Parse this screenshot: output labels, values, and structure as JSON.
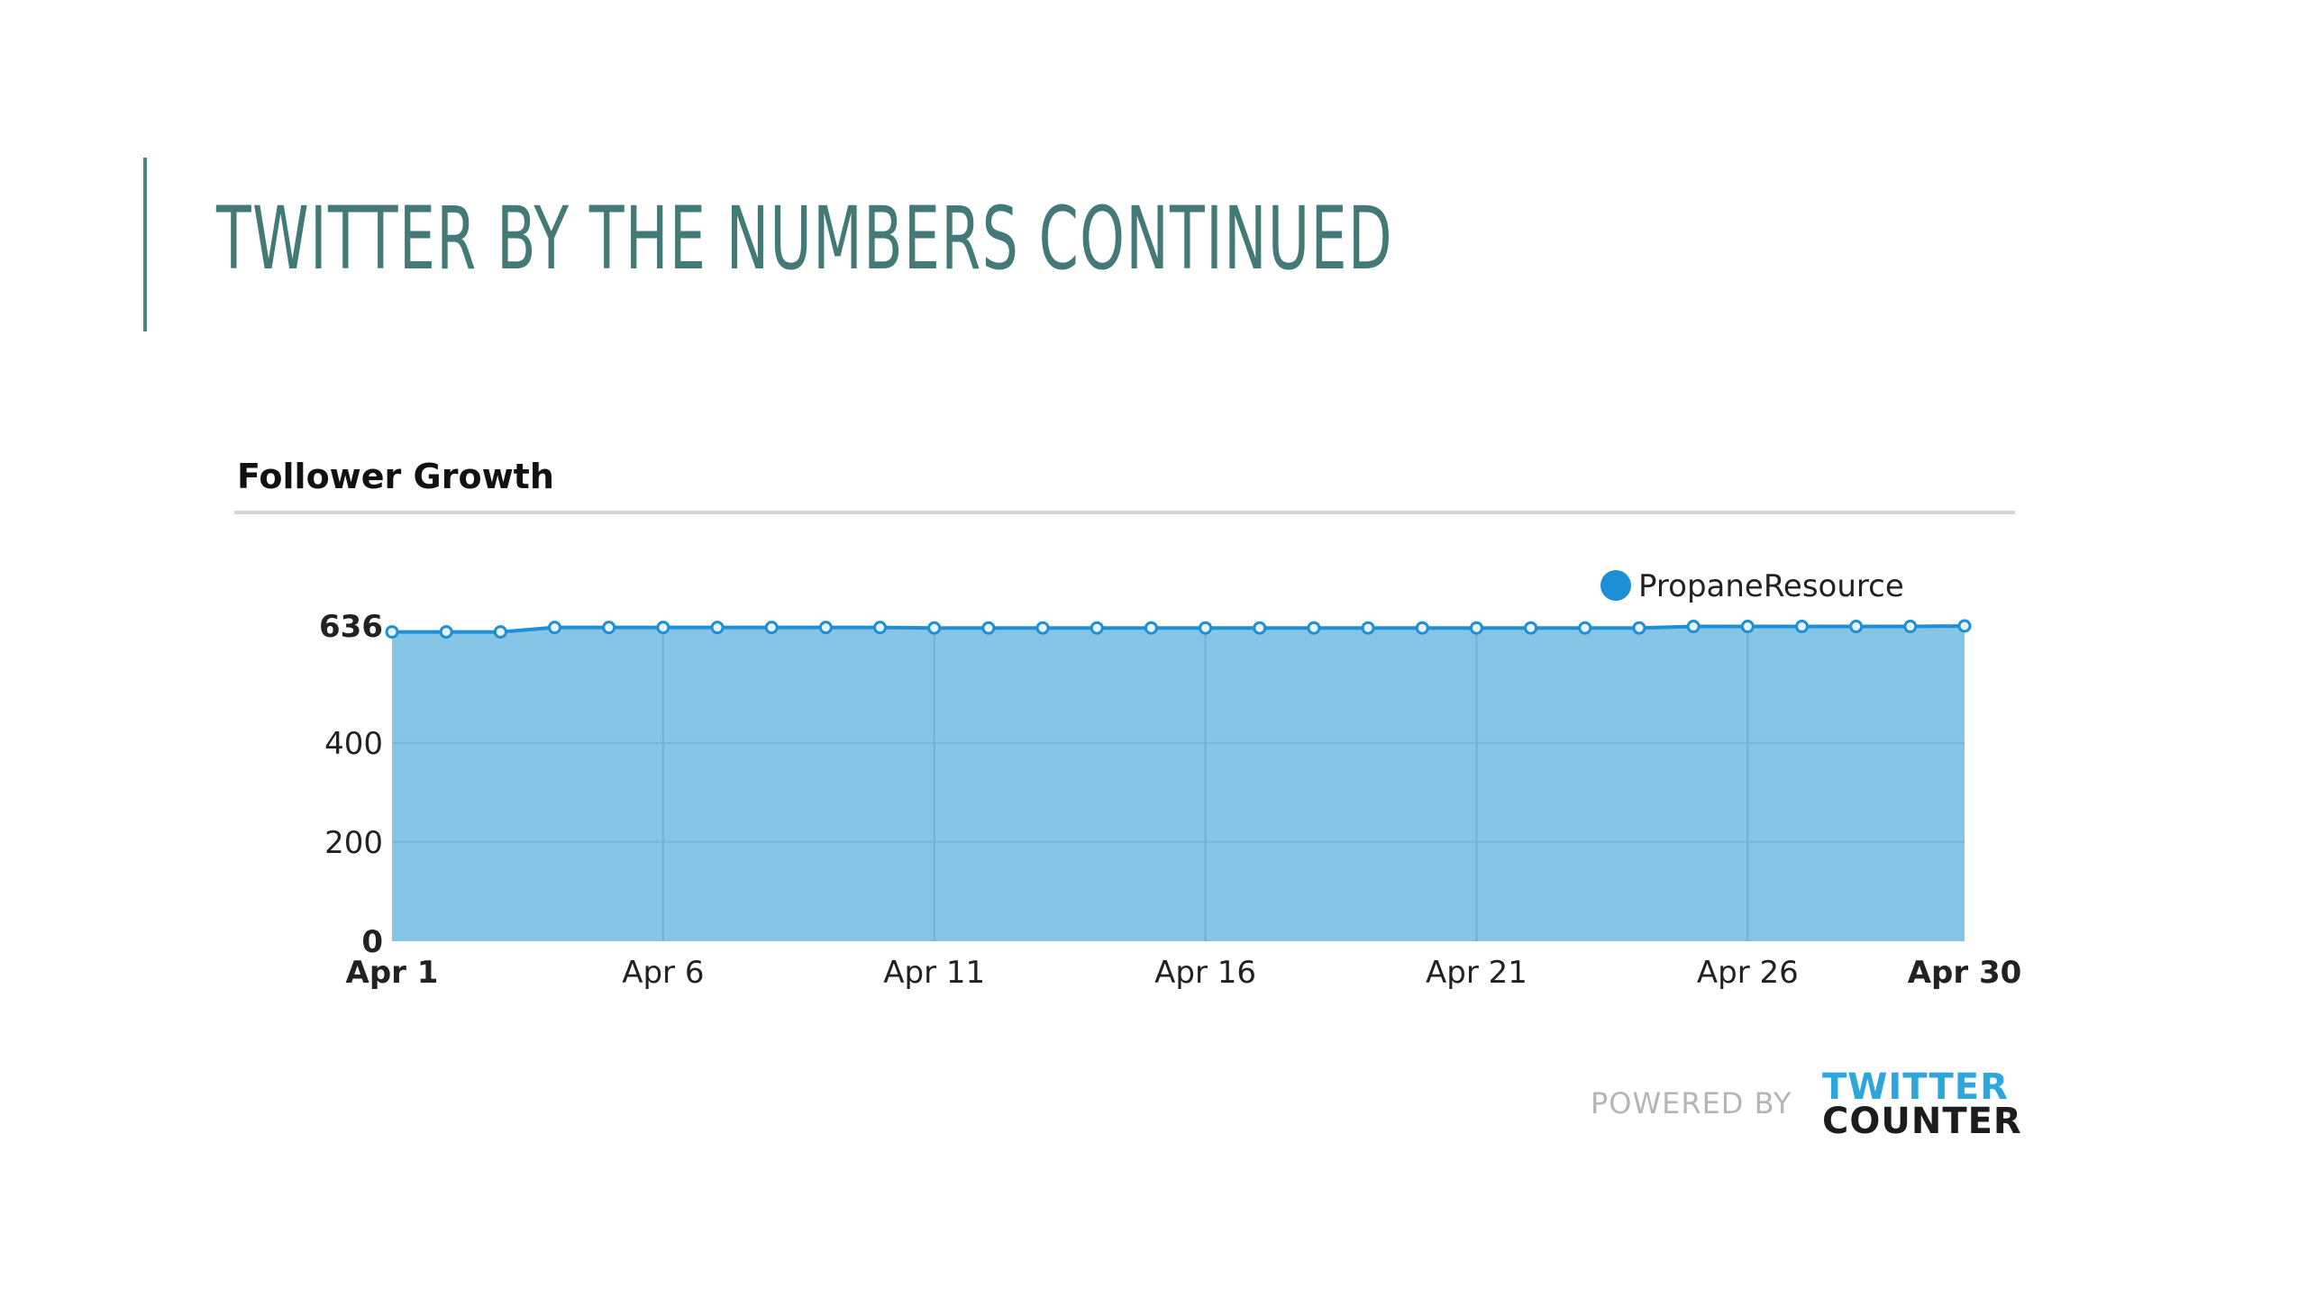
{
  "slide": {
    "title": "TWITTER BY THE NUMBERS CONTINUED"
  },
  "chart_data": {
    "type": "area",
    "title": "Follower Growth",
    "legend_position": "top-right",
    "grid": true,
    "ylim": [
      0,
      636
    ],
    "y_ticks": [
      {
        "value": 0,
        "label": "0",
        "bold": true
      },
      {
        "value": 200,
        "label": "200",
        "bold": false
      },
      {
        "value": 400,
        "label": "400",
        "bold": false
      },
      {
        "value": 636,
        "label": "636",
        "bold": true
      }
    ],
    "x_ticks": [
      {
        "day": 1,
        "label": "Apr 1",
        "bold": true
      },
      {
        "day": 6,
        "label": "Apr 6",
        "bold": false
      },
      {
        "day": 11,
        "label": "Apr 11",
        "bold": false
      },
      {
        "day": 16,
        "label": "Apr 16",
        "bold": false
      },
      {
        "day": 21,
        "label": "Apr 21",
        "bold": false
      },
      {
        "day": 26,
        "label": "Apr 26",
        "bold": false
      },
      {
        "day": 30,
        "label": "Apr 30",
        "bold": true
      }
    ],
    "x": [
      1,
      2,
      3,
      4,
      5,
      6,
      7,
      8,
      9,
      10,
      11,
      12,
      13,
      14,
      15,
      16,
      17,
      18,
      19,
      20,
      21,
      22,
      23,
      24,
      25,
      26,
      27,
      28,
      29,
      30
    ],
    "series": [
      {
        "name": "PropaneResource",
        "color": "#1d8fd6",
        "fill": "#86c5e6",
        "values": [
          624,
          624,
          624,
          633,
          633,
          633,
          633,
          633,
          633,
          633,
          632,
          632,
          632,
          632,
          632,
          632,
          632,
          632,
          632,
          632,
          632,
          632,
          632,
          632,
          635,
          635,
          635,
          635,
          635,
          636
        ]
      }
    ]
  },
  "branding": {
    "powered_by": "POWERED BY",
    "logo_line1": "TWITTER",
    "logo_line2": "COUNTER"
  }
}
